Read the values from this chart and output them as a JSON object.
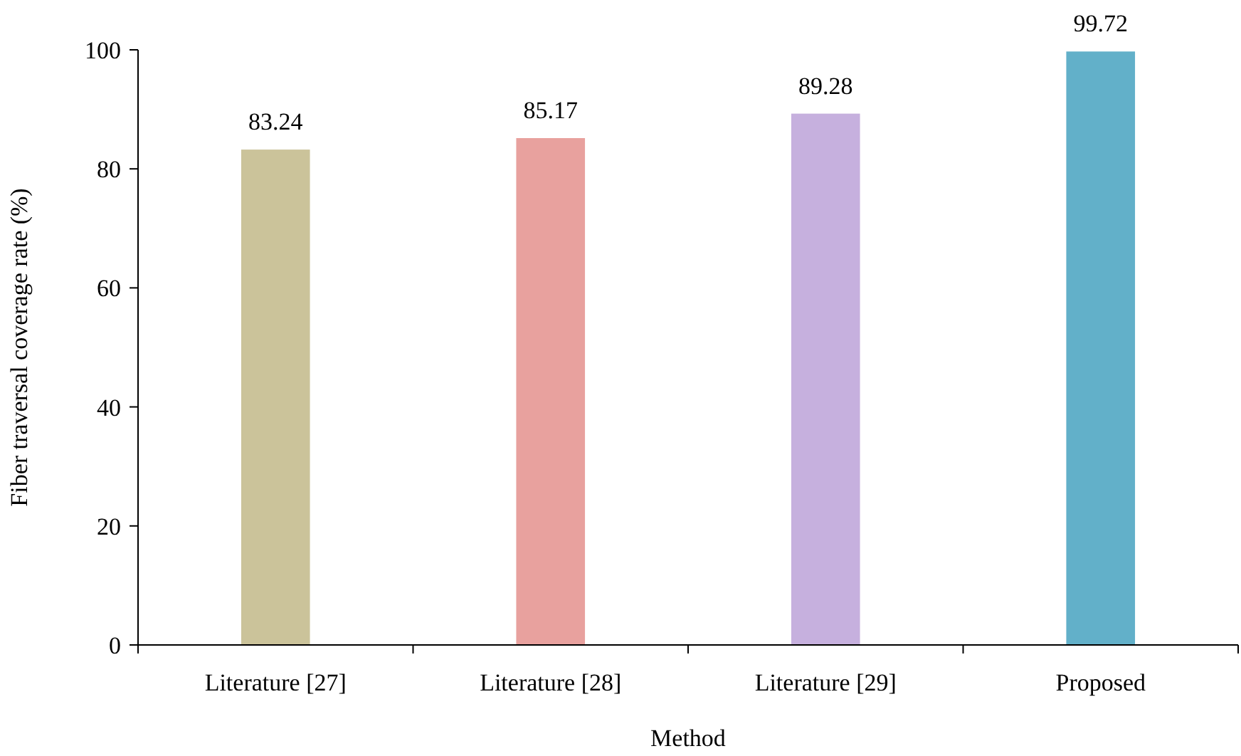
{
  "chart_data": {
    "type": "bar",
    "xlabel": "Method",
    "ylabel": "Fiber traversal coverage rate (%)",
    "categories": [
      "Literature [27]",
      "Literature [28]",
      "Literature [29]",
      "Proposed"
    ],
    "values": [
      83.24,
      85.17,
      89.28,
      99.72
    ],
    "colors": [
      "#cbc39a",
      "#e8a19e",
      "#c6b0de",
      "#62b0c9"
    ],
    "ylim": [
      0,
      100
    ],
    "yticks": [
      0,
      20,
      40,
      60,
      80,
      100
    ],
    "data_labels": true,
    "grid": false
  }
}
